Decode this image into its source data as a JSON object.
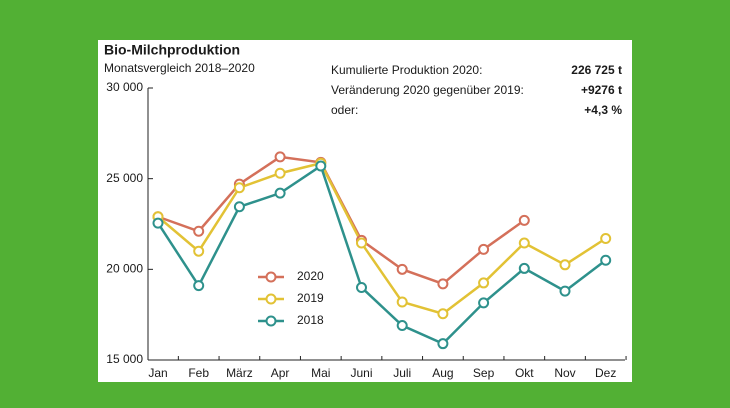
{
  "chart_data": {
    "type": "line",
    "title": "Bio-Milchproduktion",
    "subtitle": "Monatsvergleich 2018–2020",
    "summary": [
      {
        "label": "Kumulierte Produktion 2020:",
        "value": "226 725 t"
      },
      {
        "label": "Veränderung 2020 gegenüber 2019:",
        "value": "+9276 t"
      },
      {
        "label": "oder:",
        "value": "+4,3 %"
      }
    ],
    "categories": [
      "Jan",
      "Feb",
      "März",
      "Apr",
      "Mai",
      "Juni",
      "Juli",
      "Aug",
      "Sep",
      "Okt",
      "Nov",
      "Dez"
    ],
    "series": [
      {
        "name": "2020",
        "color": "#d4705a",
        "values": [
          22900,
          22100,
          24700,
          26200,
          25900,
          21600,
          20000,
          19200,
          21100,
          22700,
          null,
          null
        ]
      },
      {
        "name": "2019",
        "color": "#e2c235",
        "values": [
          22900,
          21000,
          24500,
          25300,
          25850,
          21450,
          18200,
          17550,
          19250,
          21450,
          20250,
          21700
        ]
      },
      {
        "name": "2018",
        "color": "#2e918c",
        "values": [
          22550,
          19100,
          23450,
          24200,
          25700,
          19000,
          16900,
          15900,
          18150,
          20050,
          18800,
          20500
        ]
      }
    ],
    "ylim": [
      15000,
      30000
    ],
    "yticks": [
      {
        "value": 15000,
        "label": "15 000"
      },
      {
        "value": 20000,
        "label": "20 000"
      },
      {
        "value": 25000,
        "label": "25 000"
      },
      {
        "value": 30000,
        "label": "30 000"
      }
    ],
    "grid": false
  }
}
